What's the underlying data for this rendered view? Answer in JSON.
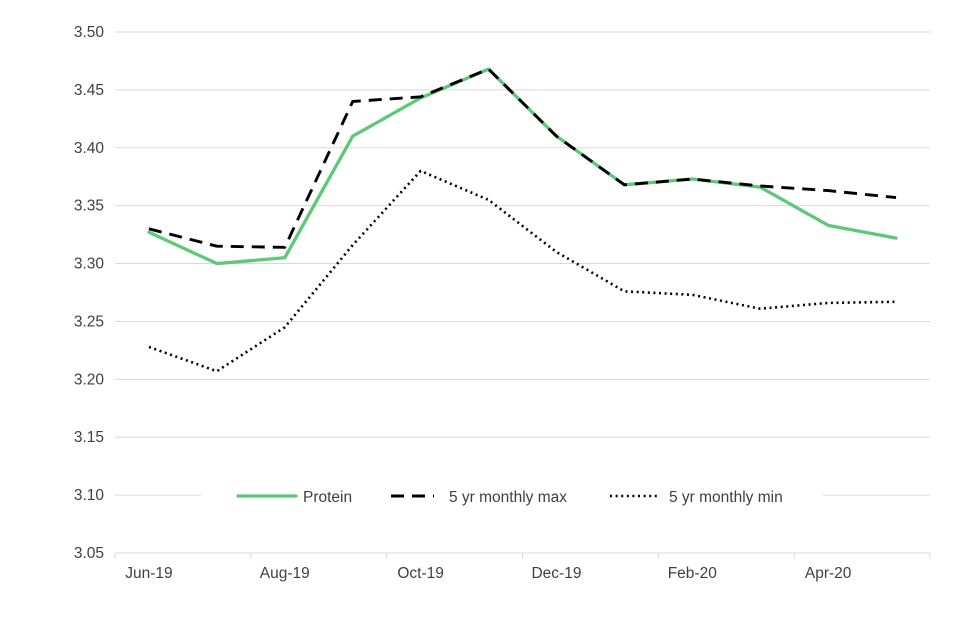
{
  "chart_data": {
    "type": "line",
    "title": "",
    "categories": [
      "Jun-19",
      "Jul-19",
      "Aug-19",
      "Sep-19",
      "Oct-19",
      "Nov-19",
      "Dec-19",
      "Jan-20",
      "Feb-20",
      "Mar-20",
      "Apr-20",
      "May-20"
    ],
    "x_tick_labels": [
      "Jun-19",
      "Aug-19",
      "Oct-19",
      "Dec-19",
      "Feb-20",
      "Apr-20"
    ],
    "y_tick_labels": [
      "3.05",
      "3.10",
      "3.15",
      "3.20",
      "3.25",
      "3.30",
      "3.35",
      "3.40",
      "3.45",
      "3.50"
    ],
    "ylim": [
      3.05,
      3.5
    ],
    "y_tick_step": 0.05,
    "grid": true,
    "legend_position": "bottom-center-overlay",
    "series": [
      {
        "name": "Protein",
        "style": "solid",
        "color": "#5dc878",
        "values": [
          3.327,
          3.3,
          3.305,
          3.41,
          3.443,
          3.468,
          3.41,
          3.368,
          3.373,
          3.366,
          3.333,
          3.322
        ]
      },
      {
        "name": "5 yr monthly max",
        "style": "dashed",
        "color": "#000000",
        "values": [
          3.33,
          3.315,
          3.314,
          3.44,
          3.444,
          3.468,
          3.41,
          3.368,
          3.373,
          3.367,
          3.363,
          3.357
        ]
      },
      {
        "name": "5 yr monthly min",
        "style": "dotted",
        "color": "#000000",
        "values": [
          3.228,
          3.207,
          3.245,
          3.316,
          3.38,
          3.355,
          3.31,
          3.276,
          3.273,
          3.261,
          3.266,
          3.267
        ]
      }
    ],
    "colors": {
      "background": "#ffffff",
      "gridline": "#d9d9d9",
      "axis_line": "#d9d9d9",
      "axis_text": "#404040",
      "legend_text": "#404040",
      "accent_green": "#5dc878"
    }
  }
}
